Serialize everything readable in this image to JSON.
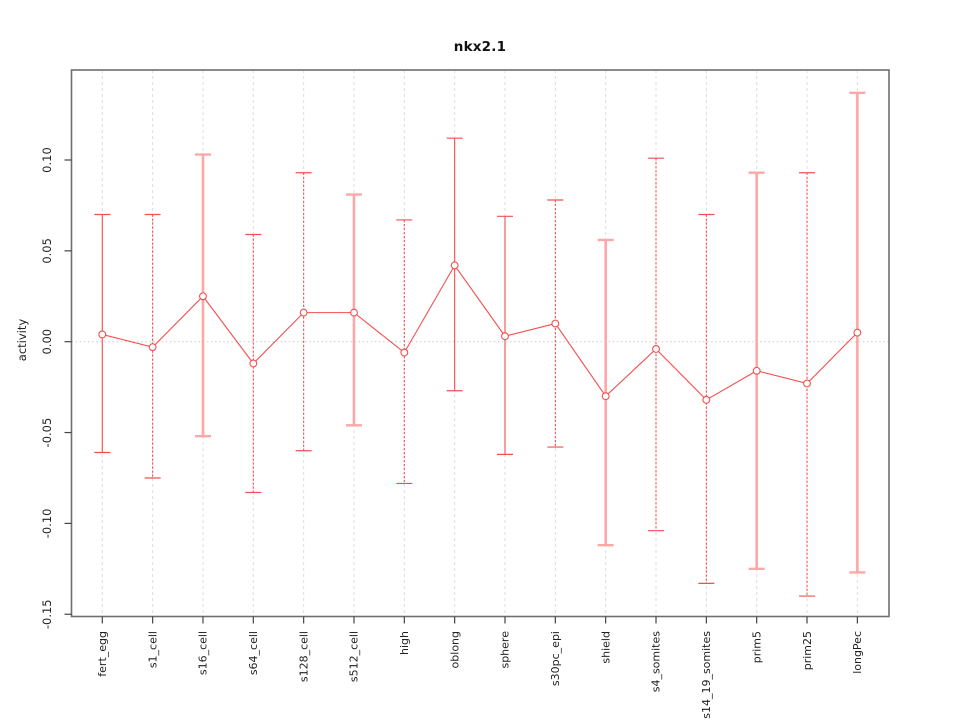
{
  "title": "nkx2.1",
  "y_axis_label": "activity",
  "colors": {
    "point_line": "#f25050",
    "bar_light": "#ffa6a6",
    "grid": "#dddddd",
    "zero_line": "#cccccc",
    "axis_box": "#6e6e6e",
    "tick": "#444444",
    "text": "#222222",
    "background": "#ffffff"
  },
  "chart_data": {
    "type": "line",
    "title": "nkx2.1",
    "xlabel": "",
    "ylabel": "activity",
    "ylim": [
      -0.152,
      0.15
    ],
    "y_ticks": [
      0.1,
      0.05,
      0.0,
      -0.05,
      -0.1,
      -0.15
    ],
    "y_tick_labels": [
      "0.10",
      "0.05",
      "0.00",
      "-0.05",
      "-0.10",
      "-0.15"
    ],
    "grid": {
      "vertical": "dashed line at every category",
      "horizontal": "dotted line at y=0 only"
    },
    "legend_position": "none",
    "categories": [
      "fert_egg",
      "s1_cell",
      "s16_cell",
      "s64_cell",
      "s128_cell",
      "s512_cell",
      "high",
      "oblong",
      "sphere",
      "s30pc_epi",
      "shield",
      "s4_somites",
      "s14_19_somites",
      "prim5",
      "prim25",
      "longPec"
    ],
    "series": [
      {
        "name": "mean_activity",
        "values": [
          0.004,
          -0.003,
          0.025,
          -0.012,
          0.016,
          0.016,
          -0.006,
          0.042,
          0.003,
          0.01,
          -0.03,
          -0.004,
          -0.032,
          -0.016,
          -0.023,
          0.005
        ]
      },
      {
        "name": "upper_error",
        "values": [
          0.07,
          0.07,
          0.103,
          0.059,
          0.093,
          0.081,
          0.067,
          0.112,
          0.069,
          0.078,
          0.056,
          0.101,
          0.07,
          0.093,
          0.093,
          0.137
        ]
      },
      {
        "name": "lower_error",
        "values": [
          -0.061,
          -0.075,
          -0.052,
          -0.083,
          -0.06,
          -0.046,
          -0.078,
          -0.027,
          -0.062,
          -0.058,
          -0.112,
          -0.104,
          -0.133,
          -0.125,
          -0.14,
          -0.127
        ]
      }
    ],
    "error_bar_styles": [
      "solid",
      "dashed",
      "light",
      "dashed",
      "dashed",
      "light",
      "dashed",
      "solid",
      "solid",
      "dashed",
      "light",
      "dashed",
      "dashed",
      "light",
      "dashed",
      "light"
    ]
  }
}
